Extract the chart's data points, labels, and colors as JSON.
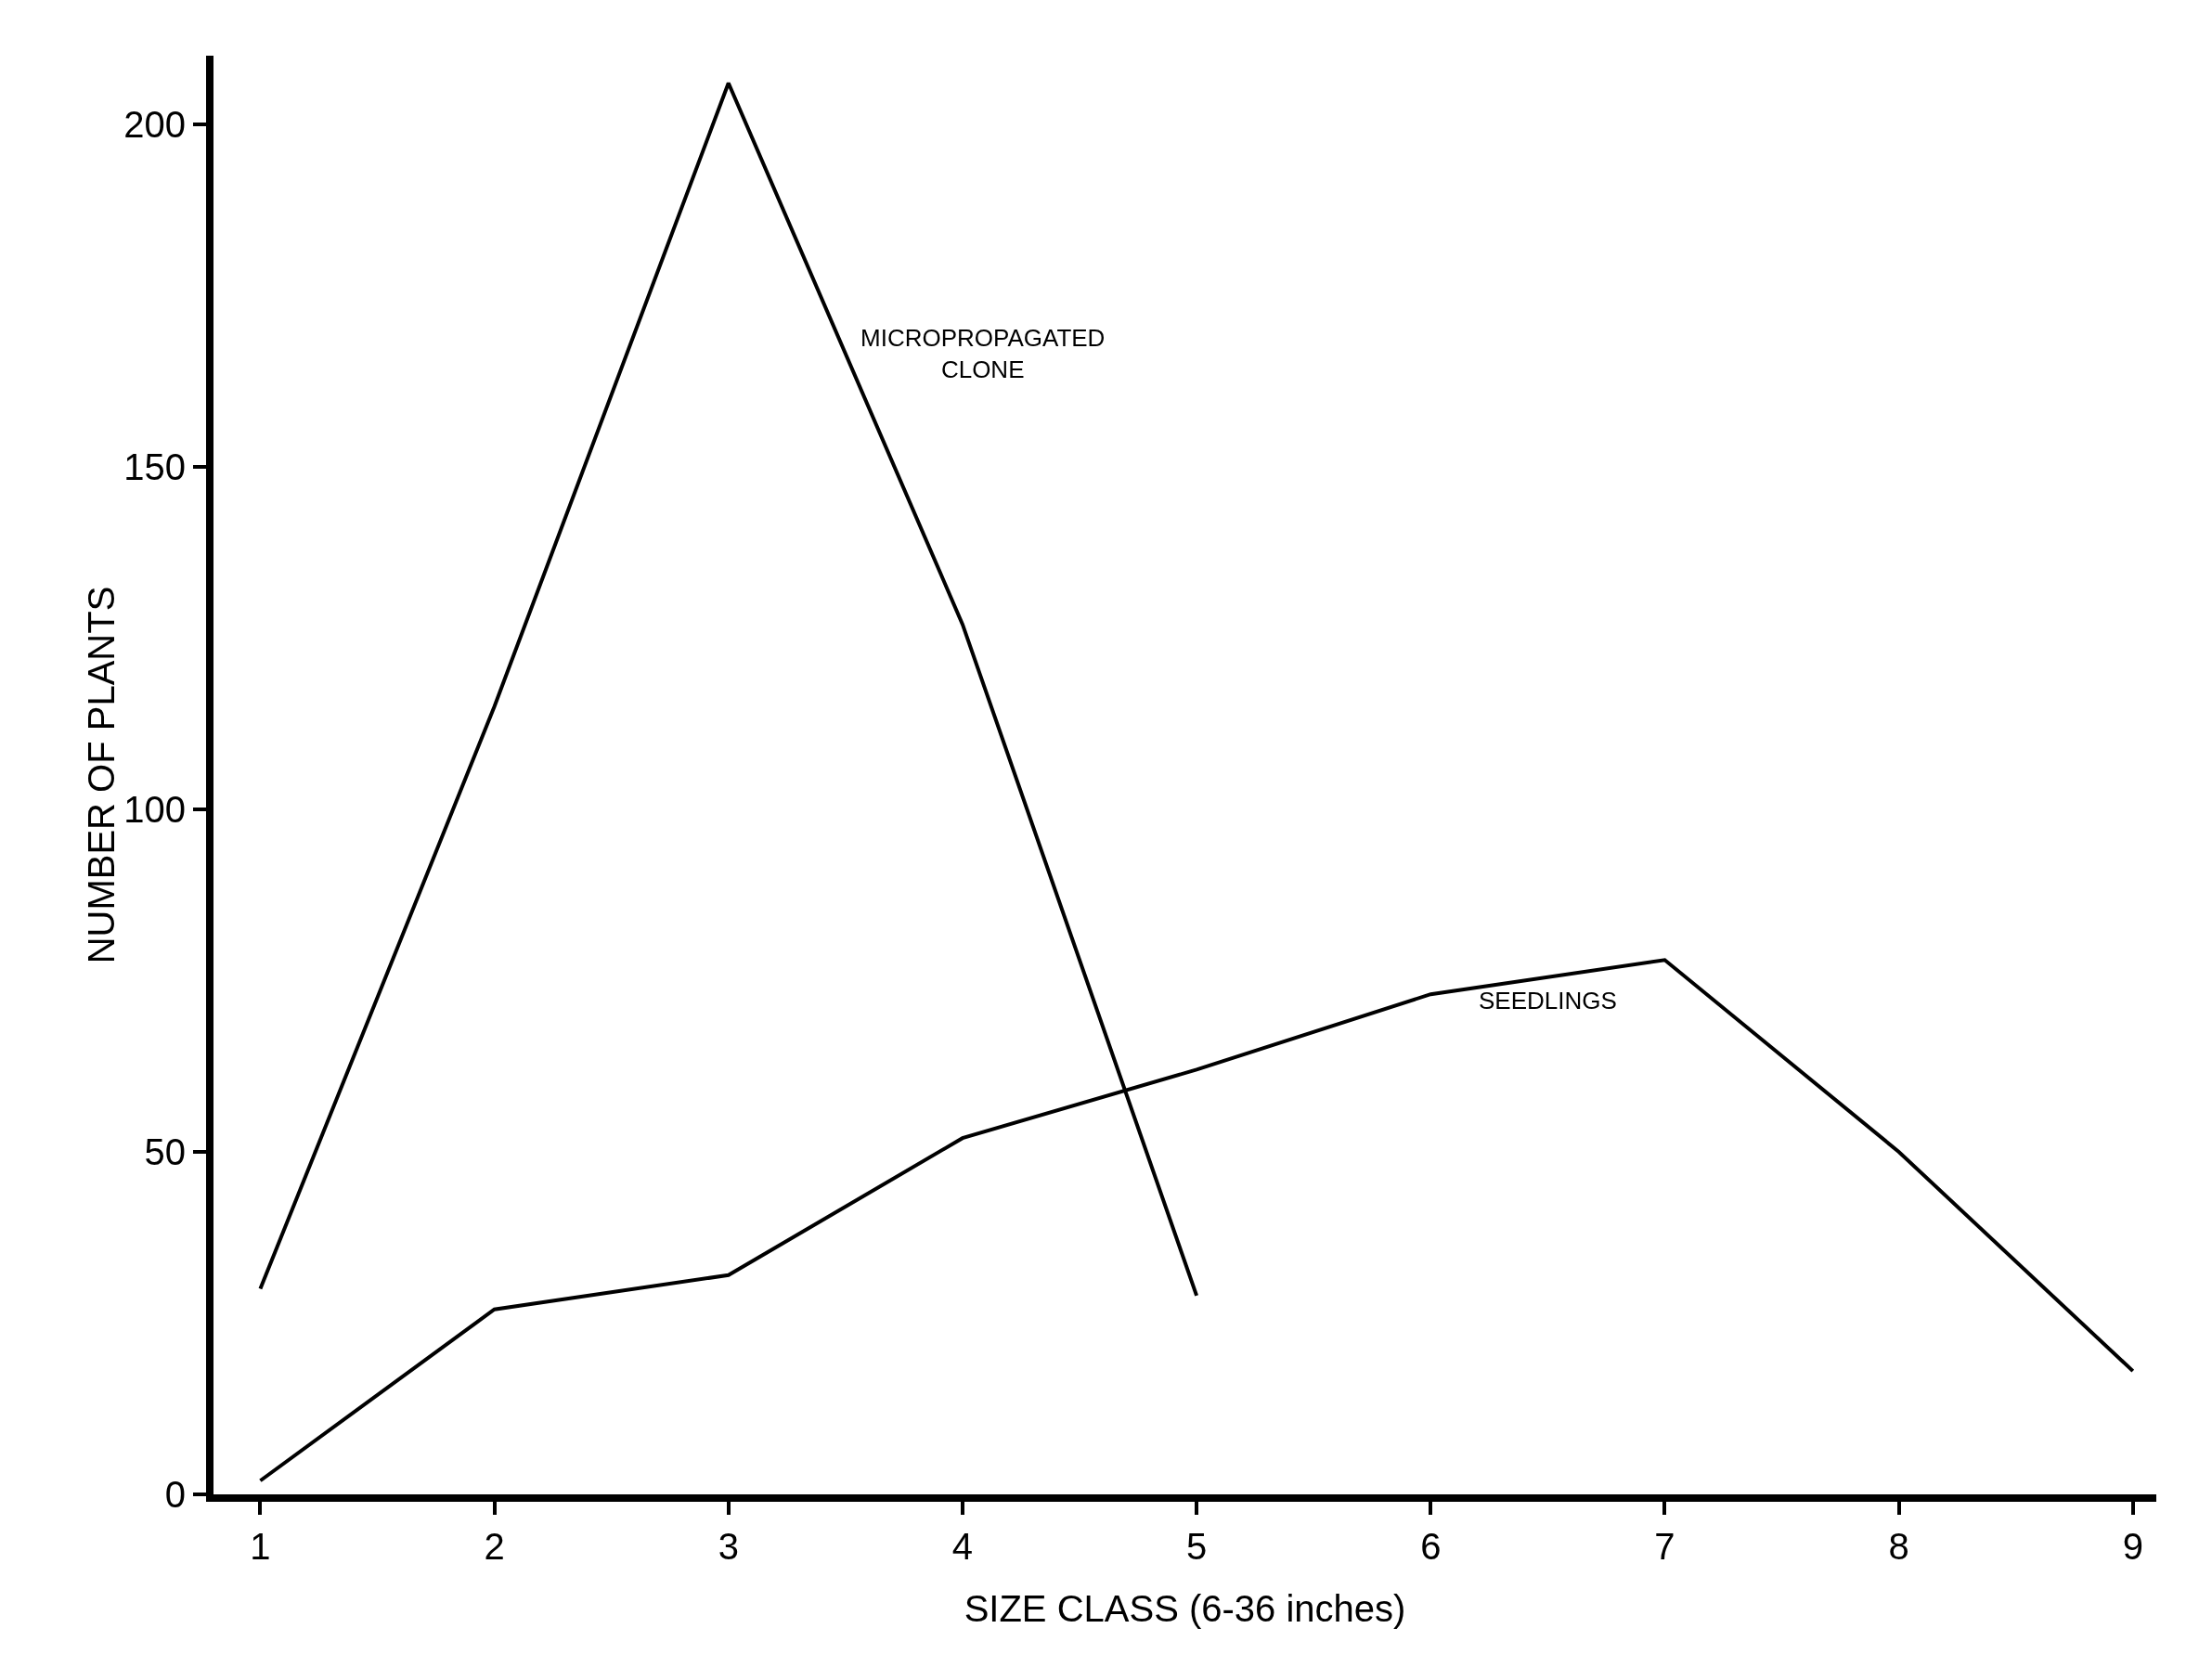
{
  "chart_data": {
    "type": "line",
    "xlabel": "SIZE CLASS (6-36 inches)",
    "ylabel": "NUMBER OF PLANTS",
    "x": [
      1,
      2,
      3,
      4,
      5,
      6,
      7,
      8,
      9
    ],
    "series": [
      {
        "name": "MICROPROPAGATED CLONE",
        "color": "#000000",
        "values": [
          30,
          115,
          206,
          127,
          29,
          null,
          null,
          null,
          null
        ]
      },
      {
        "name": "SEEDLINGS",
        "color": "#000000",
        "values": [
          2,
          27,
          32,
          52,
          62,
          73,
          78,
          50,
          18
        ]
      }
    ],
    "xlim": [
      0.8,
      9.1
    ],
    "ylim": [
      0,
      210
    ],
    "xticks": [
      1,
      2,
      3,
      4,
      5,
      6,
      7,
      8,
      9
    ],
    "yticks": [
      0,
      50,
      100,
      150,
      200
    ],
    "grid": false,
    "legend": false,
    "marker": "none",
    "line_style": "solid"
  }
}
